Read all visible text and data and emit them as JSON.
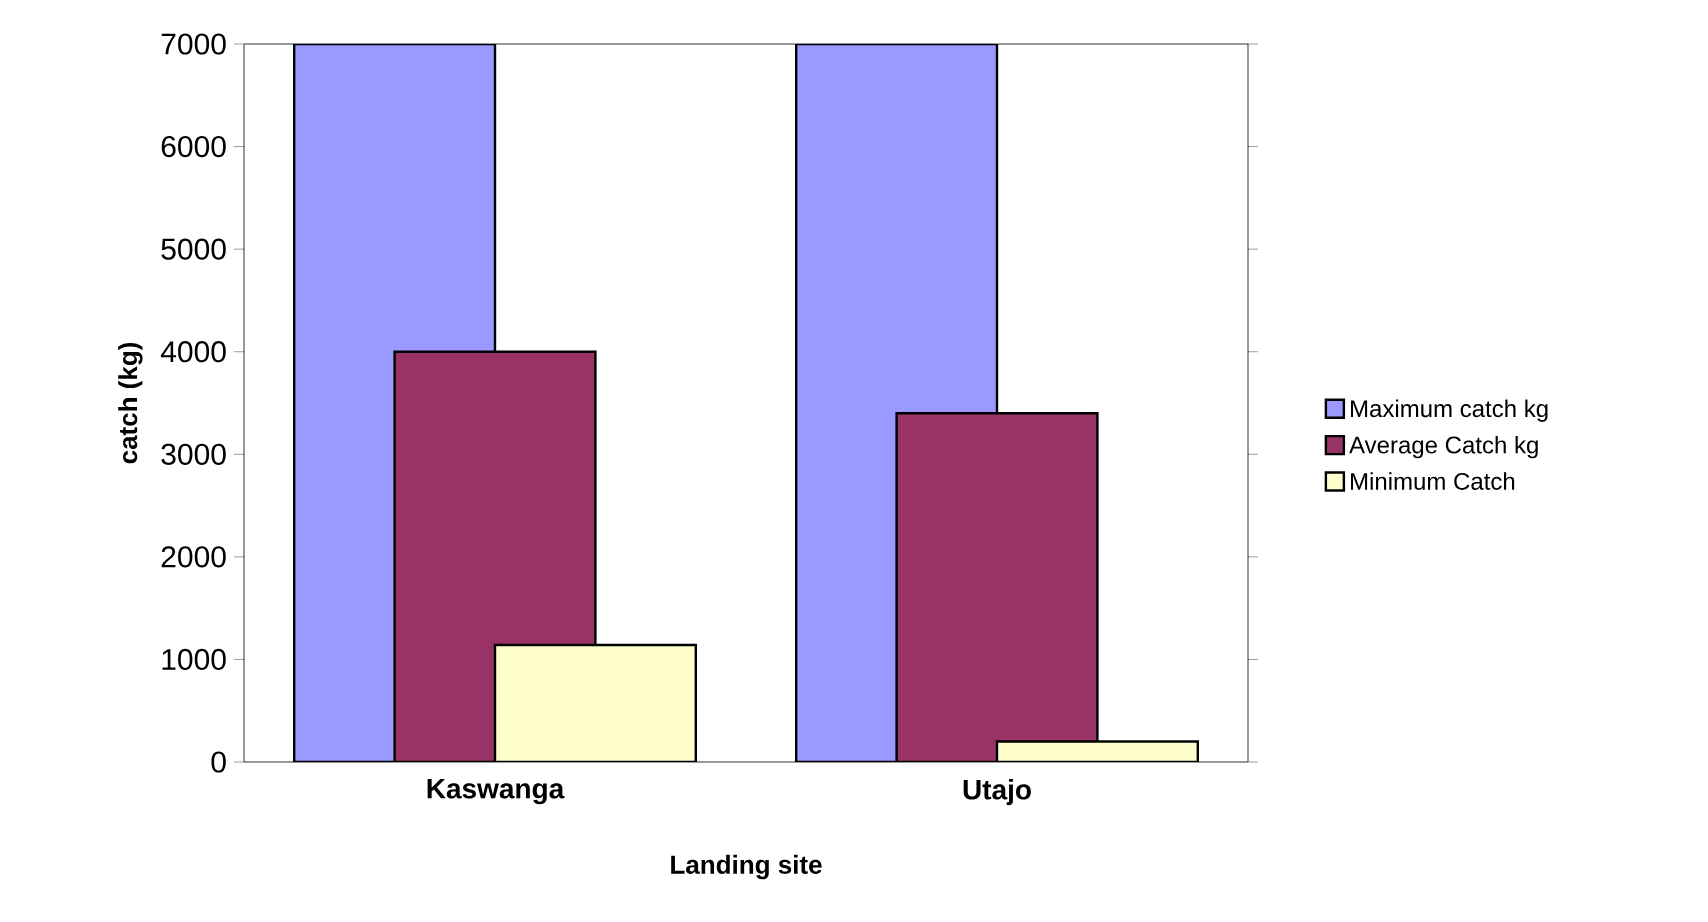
{
  "chart_data": {
    "type": "bar",
    "xlabel": "Landing site",
    "ylabel": "catch (kg)",
    "categories": [
      "Kaswanga",
      "Utajo"
    ],
    "series": [
      {
        "name": "Maximum catch kg",
        "color": "#9999ff",
        "values": [
          7000,
          7000
        ]
      },
      {
        "name": "Average Catch kg",
        "color": "#993366",
        "values": [
          4000,
          3400
        ]
      },
      {
        "name": "Minimum Catch",
        "color": "#ffffcc",
        "values": [
          1140,
          200
        ]
      }
    ],
    "ylim": [
      0,
      7000
    ],
    "yticks": [
      0,
      1000,
      2000,
      3000,
      4000,
      5000,
      6000,
      7000
    ],
    "grid": false,
    "legend": "right"
  }
}
